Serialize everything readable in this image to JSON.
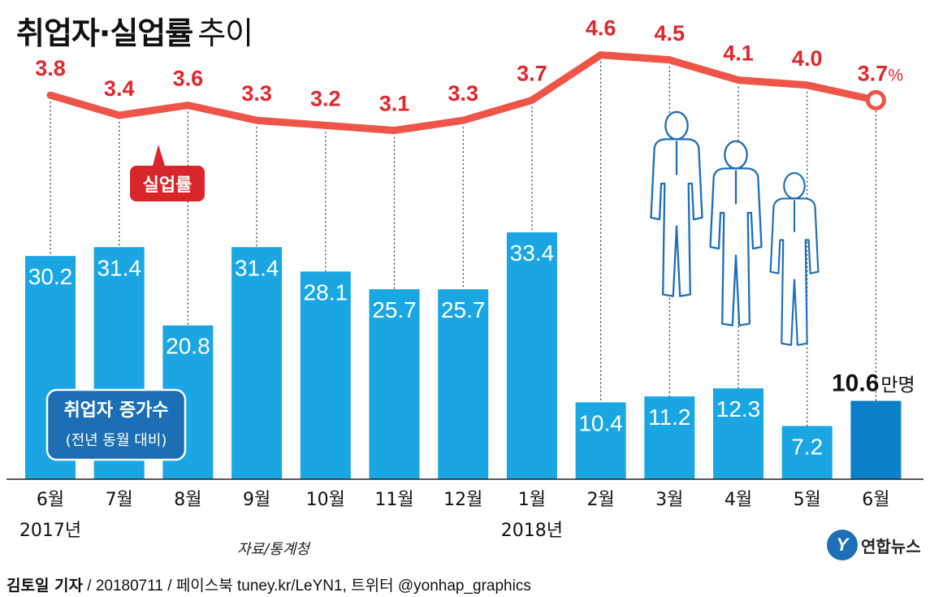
{
  "title": {
    "main": "취업자·실업률",
    "sub": "추이"
  },
  "credit": {
    "author": "김토일 기자",
    "rest": " / 20180711 / 페이스북 tuney.kr/LeYN1, 트위터 @yonhap_graphics"
  },
  "source": "자료/통계청",
  "logo": {
    "mark": "Y",
    "text": "연합뉴스"
  },
  "colors": {
    "bar": "#1aa6e3",
    "bar_last": "#0b7fc7",
    "line": "#ee5548",
    "label_red": "#e0272b",
    "badge_red": "#d8262b",
    "badge_blue": "#1c6fb5"
  },
  "chart_data": {
    "type": "bar+line",
    "categories": [
      "6월",
      "7월",
      "8월",
      "9월",
      "10월",
      "11월",
      "12월",
      "1월",
      "2월",
      "3월",
      "4월",
      "5월",
      "6월"
    ],
    "year_labels": [
      {
        "index": 0,
        "label": "2017년"
      },
      {
        "index": 7,
        "label": "2018년"
      }
    ],
    "series": [
      {
        "name": "취업자 증가수",
        "subtitle": "(전년 동월 대비)",
        "type": "bar",
        "unit": "만명",
        "values": [
          30.2,
          31.4,
          20.8,
          31.4,
          28.1,
          25.7,
          25.7,
          33.4,
          10.4,
          11.2,
          12.3,
          7.2,
          10.6
        ],
        "value_labels": [
          "30.2",
          "31.4",
          "20.8",
          "31.4",
          "28.1",
          "25.7",
          "25.7",
          "33.4",
          "10.4",
          "11.2",
          "12.3",
          "7.2",
          "10.6"
        ]
      },
      {
        "name": "실업률",
        "type": "line",
        "unit": "%",
        "values": [
          3.8,
          3.4,
          3.6,
          3.3,
          3.2,
          3.1,
          3.3,
          3.7,
          4.6,
          4.5,
          4.1,
          4.0,
          3.7
        ],
        "value_labels": [
          "3.8",
          "3.4",
          "3.6",
          "3.3",
          "3.2",
          "3.1",
          "3.3",
          "3.7",
          "4.6",
          "4.5",
          "4.1",
          "4.0",
          "3.7"
        ]
      }
    ]
  }
}
